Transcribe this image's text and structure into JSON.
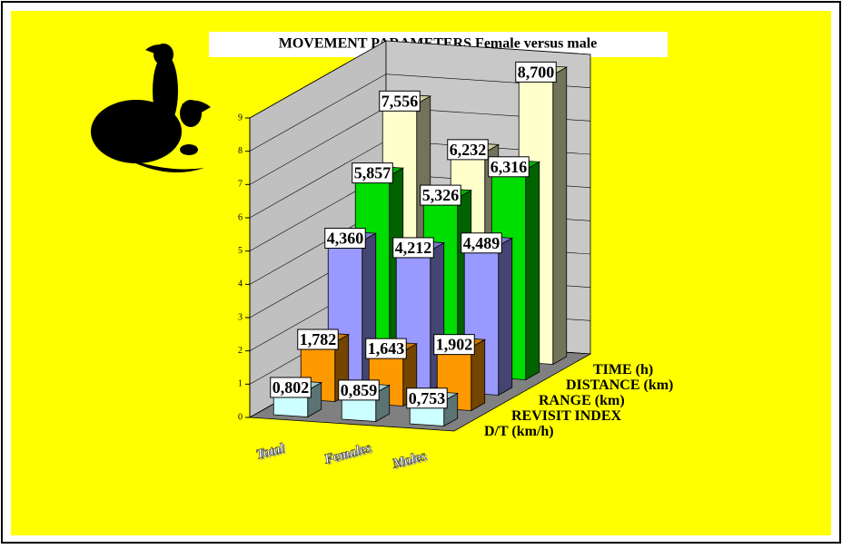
{
  "chart_data": {
    "type": "bar3d",
    "title": "MOVEMENT PARAMETERS Female versus male",
    "categories": [
      "Total",
      "Females",
      "Males"
    ],
    "series": [
      {
        "name": "D/T (km/h)",
        "color": "#ccffff",
        "values": [
          0.802,
          0.859,
          0.753
        ],
        "value_labels": [
          "0,802",
          "0,859",
          "0,753"
        ]
      },
      {
        "name": "REVISIT INDEX",
        "color": "#ff9900",
        "values": [
          1.782,
          1.643,
          1.902
        ],
        "value_labels": [
          "1,782",
          "1,643",
          "1,902"
        ]
      },
      {
        "name": "RANGE (km)",
        "color": "#9999ff",
        "values": [
          4.36,
          4.212,
          4.489
        ],
        "value_labels": [
          "4,360",
          "4,212",
          "4,489"
        ]
      },
      {
        "name": "DISTANCE (km)",
        "color": "#00dd00",
        "values": [
          5.857,
          5.326,
          6.316
        ],
        "value_labels": [
          "5,857",
          "5,326",
          "6,316"
        ]
      },
      {
        "name": "TIME (h)",
        "color": "#ffffcc",
        "values": [
          7.556,
          6.232,
          8.7
        ],
        "value_labels": [
          "7,556",
          "6,232",
          "8,700"
        ]
      }
    ],
    "ylim": [
      0,
      9
    ],
    "yticks": [
      0,
      1,
      2,
      3,
      4,
      5,
      6,
      7,
      8,
      9
    ],
    "grid": true
  }
}
